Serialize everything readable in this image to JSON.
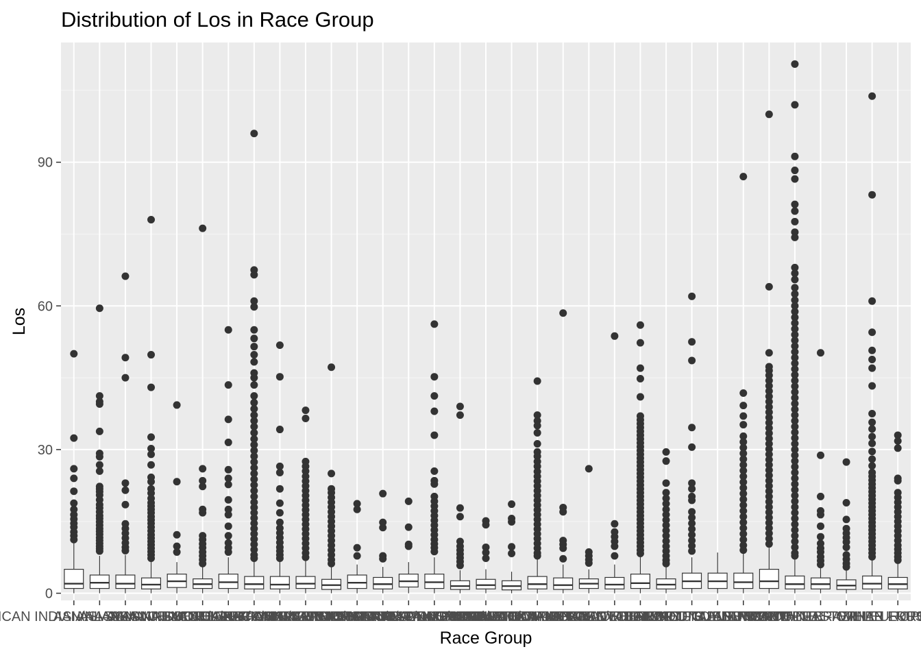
{
  "chart_data": {
    "type": "box",
    "title": "Distribution of Los in Race Group",
    "xlabel": "Race Group",
    "ylabel": "Los",
    "ylim": [
      -1.5,
      115
    ],
    "yticks": [
      0,
      30,
      60,
      90
    ],
    "grid": true,
    "legend": "none",
    "categories": [
      "AMERICAN INDIAN/ALASKA NATIVE",
      "ASIAN",
      "ASIAN - ASIAN INDIAN",
      "ASIAN - CHINESE",
      "ASIAN - KOREAN",
      "ASIAN - SOUTH EAST ASIAN",
      "BLACK/AFRICAN",
      "BLACK/AFRICAN AMERICAN",
      "BLACK/CAPE VERDEAN",
      "BLACK/CARIBBEAN ISLAND",
      "HISPANIC OR LATINO",
      "HISPANIC/LATINO - CENTRAL AMERICAN",
      "HISPANIC/LATINO - COLUMBIAN",
      "HISPANIC/LATINO - CUBAN",
      "HISPANIC/LATINO - DOMINICAN",
      "HISPANIC/LATINO - GUATEMALAN",
      "HISPANIC/LATINO - HONDURAN",
      "HISPANIC/LATINO - MEXICAN",
      "HISPANIC/LATINO - PUERTO RICAN",
      "HISPANIC/LATINO - SALVADORAN",
      "MULTIPLE RACE/ETHNICITY",
      "NATIVE HAWAIIAN OR OTHER PACIFIC ISLANDER",
      "OTHER",
      "PATIENT DECLINED TO ANSWER",
      "PORTUGUESE",
      "SOUTH AMERICAN",
      "UNABLE TO OBTAIN",
      "UNKNOWN",
      "WHITE",
      "WHITE - BRAZILIAN",
      "WHITE - EASTERN EUROPEAN",
      "WHITE - OTHER EUROPEAN",
      "WHITE - RUSSIAN"
    ],
    "boxes": [
      {
        "q1": 1.0,
        "median": 2.0,
        "q3": 5.0,
        "lower": 0.0,
        "upper": 10.5,
        "outliers": [
          50,
          32.4,
          26,
          24,
          21.3,
          18.8,
          17.5,
          16.4,
          15.5,
          14.6,
          13.8,
          12.8,
          12.0,
          11.2
        ]
      },
      {
        "q1": 1.0,
        "median": 2.2,
        "q3": 3.8,
        "lower": 0.0,
        "upper": 7.8,
        "outliers": [
          59.5,
          41.2,
          40,
          39.5,
          33.8,
          29.2,
          28.5,
          26.8,
          25.5,
          22.3,
          21.8,
          21.2,
          20.5,
          19.5,
          18.5,
          17.8,
          17.0,
          16.2,
          15.6,
          14.9,
          14.2,
          13.5,
          12.9,
          12.3,
          11.6,
          11.0,
          10.4,
          9.8,
          9.3,
          8.8
        ]
      },
      {
        "q1": 1.0,
        "median": 2.0,
        "q3": 3.8,
        "lower": 0.0,
        "upper": 8.0,
        "outliers": [
          66.2,
          49.2,
          45,
          23,
          21.5,
          18.5,
          14.5,
          13.5,
          12.5,
          11.5,
          10.5,
          9.6,
          8.9
        ]
      },
      {
        "q1": 0.9,
        "median": 1.8,
        "q3": 3.2,
        "lower": 0.0,
        "upper": 6.8,
        "outliers": [
          78,
          49.8,
          43,
          32.6,
          30.2,
          29,
          26.8,
          24.2,
          23.3,
          21.8,
          20.9,
          19.8,
          18.9,
          18.2,
          17.5,
          16.8,
          16.0,
          15.3,
          14.6,
          13.8,
          13.0,
          12.2,
          11.5,
          10.8,
          10.1,
          9.4,
          8.7,
          8.0,
          7.3
        ]
      },
      {
        "q1": 1.2,
        "median": 2.5,
        "q3": 4.0,
        "lower": 0.0,
        "upper": 6.5,
        "outliers": [
          39.3,
          23.3,
          12.2,
          9.8,
          8.6
        ]
      },
      {
        "q1": 1.0,
        "median": 1.9,
        "q3": 3.0,
        "lower": 0.0,
        "upper": 5.5,
        "outliers": [
          76.2,
          26,
          23.5,
          22.3,
          17.5,
          16.8,
          12.0,
          11.2,
          10.3,
          9.5,
          8.6,
          7.8,
          7.0,
          6.2
        ]
      },
      {
        "q1": 1.0,
        "median": 2.3,
        "q3": 4.0,
        "lower": 0.0,
        "upper": 7.5,
        "outliers": [
          55,
          43.5,
          36.3,
          31.5,
          25.8,
          24,
          22.7,
          19.5,
          17.5,
          16.4,
          14.0,
          12.0,
          10.5,
          9.5,
          8.6
        ]
      },
      {
        "q1": 0.9,
        "median": 1.9,
        "q3": 3.5,
        "lower": 0.0,
        "upper": 7.0,
        "outliers": [
          96,
          67.5,
          66.5,
          61,
          59.8,
          55,
          53.2,
          51.5,
          49.8,
          48.3,
          46,
          45,
          43.5,
          41.2,
          39.8,
          38.5,
          37.2,
          36,
          34.8,
          33.5,
          32.2,
          31.0,
          29.8,
          28.6,
          27.4,
          26.2,
          25.0,
          23.8,
          22.6,
          21.4,
          20.2,
          19.0,
          17.9,
          16.8,
          15.7,
          14.6,
          13.5,
          12.4,
          11.3,
          10.2,
          9.1,
          8.0,
          7.3
        ]
      },
      {
        "q1": 0.9,
        "median": 1.8,
        "q3": 3.5,
        "lower": 0.0,
        "upper": 7.0,
        "outliers": [
          51.8,
          45.2,
          34.2,
          26.5,
          25.2,
          21.8,
          18.8,
          16.8,
          14.8,
          13.6,
          12.6,
          11.6,
          10.6,
          9.6,
          8.8,
          8.0,
          7.3
        ]
      },
      {
        "q1": 1.0,
        "median": 2.0,
        "q3": 3.5,
        "lower": 0.0,
        "upper": 7.0,
        "outliers": [
          38.2,
          36.5,
          27.5,
          26.5,
          25.5,
          24.4,
          23.4,
          22.4,
          21.4,
          20.4,
          19.4,
          18.4,
          17.4,
          16.4,
          15.4,
          14.4,
          13.4,
          12.4,
          11.4,
          10.4,
          9.4,
          8.4,
          7.5
        ]
      },
      {
        "q1": 0.8,
        "median": 1.7,
        "q3": 2.9,
        "lower": 0.0,
        "upper": 5.5,
        "outliers": [
          47.2,
          25,
          21.8,
          21,
          20,
          19,
          18,
          17,
          16,
          15,
          14,
          13,
          12,
          11,
          10,
          9,
          8,
          7,
          6.2
        ]
      },
      {
        "q1": 1.0,
        "median": 2.2,
        "q3": 3.8,
        "lower": 0.0,
        "upper": 6.0,
        "outliers": [
          18.7,
          17.5,
          9.5,
          7.8
        ]
      },
      {
        "q1": 0.9,
        "median": 1.9,
        "q3": 3.3,
        "lower": 0.0,
        "upper": 5.5,
        "outliers": [
          20.8,
          14.8,
          13.7,
          7.8,
          7.2
        ]
      },
      {
        "q1": 1.3,
        "median": 2.5,
        "q3": 4.0,
        "lower": 0.0,
        "upper": 6.5,
        "outliers": [
          19.2,
          13.8,
          10.2,
          9.8
        ]
      },
      {
        "q1": 1.0,
        "median": 2.3,
        "q3": 4.0,
        "lower": 0.0,
        "upper": 7.5,
        "outliers": [
          56.2,
          45.2,
          41.2,
          38,
          33,
          25.5,
          23.5,
          22.8,
          20.2,
          19.2,
          18.2,
          17.2,
          16.2,
          15.2,
          14.2,
          13.2,
          12.2,
          11.2,
          10.3,
          9.5,
          8.7
        ]
      },
      {
        "q1": 0.8,
        "median": 1.5,
        "q3": 2.6,
        "lower": 0.0,
        "upper": 4.8,
        "outliers": [
          39,
          37.2,
          17.8,
          16,
          10.8,
          9.8,
          9.0,
          8.2,
          7.4,
          6.6,
          5.8
        ]
      },
      {
        "q1": 0.9,
        "median": 1.7,
        "q3": 2.9,
        "lower": 0.0,
        "upper": 5.0,
        "outliers": [
          15.1,
          14.3,
          9.6,
          8.5,
          7.3
        ]
      },
      {
        "q1": 0.7,
        "median": 1.5,
        "q3": 2.6,
        "lower": 0.0,
        "upper": 4.5,
        "outliers": [
          18.6,
          15.6,
          14.9,
          9.7,
          8.3
        ]
      },
      {
        "q1": 0.9,
        "median": 1.9,
        "q3": 3.5,
        "lower": 0.0,
        "upper": 7.5,
        "outliers": [
          44.3,
          37.2,
          36,
          35,
          33.5,
          31.2,
          29.5,
          28.6,
          27.5,
          26.5,
          25.4,
          24.4,
          23.4,
          22.4,
          21.4,
          20.4,
          19.4,
          18.4,
          17.4,
          16.4,
          15.4,
          14.4,
          13.4,
          12.4,
          11.4,
          10.4,
          9.4,
          8.4,
          7.8
        ]
      },
      {
        "q1": 0.8,
        "median": 1.7,
        "q3": 3.2,
        "lower": 0.0,
        "upper": 6.0,
        "outliers": [
          58.5,
          17.9,
          17,
          11,
          10.2,
          9.4,
          7.2
        ]
      },
      {
        "q1": 1.0,
        "median": 2.0,
        "q3": 3.0,
        "lower": 0.0,
        "upper": 5.0,
        "outliers": [
          26,
          8.6,
          7.8,
          7.0,
          6.3
        ]
      },
      {
        "q1": 0.9,
        "median": 1.8,
        "q3": 3.3,
        "lower": 0.0,
        "upper": 6.0,
        "outliers": [
          53.7,
          14.5,
          12.8,
          11.8,
          10.8,
          9.8,
          7.8
        ]
      },
      {
        "q1": 1.0,
        "median": 2.1,
        "q3": 4.0,
        "lower": 0.0,
        "upper": 8.0,
        "outliers": [
          56,
          52.3,
          47,
          44.8,
          41,
          37,
          36.2,
          35.4,
          34.6,
          33.8,
          33.0,
          32.2,
          31.4,
          30.6,
          29.8,
          29.0,
          28.2,
          27.4,
          26.6,
          25.8,
          25.0,
          24.2,
          23.4,
          22.6,
          21.8,
          21.0,
          20.2,
          19.4,
          18.6,
          17.8,
          17.0,
          16.2,
          15.4,
          14.6,
          13.8,
          13.0,
          12.2,
          11.4,
          10.6,
          9.8,
          9.0,
          8.3
        ]
      },
      {
        "q1": 0.9,
        "median": 1.8,
        "q3": 3.0,
        "lower": 0.0,
        "upper": 6.0,
        "outliers": [
          29.5,
          27.6,
          23,
          21,
          19.8,
          18.7,
          17.5,
          16.4,
          15.3,
          14.2,
          13.1,
          12.0,
          10.9,
          9.8,
          8.8,
          7.8,
          6.9,
          6.2
        ]
      },
      {
        "q1": 1.0,
        "median": 2.5,
        "q3": 4.2,
        "lower": 0.0,
        "upper": 7.5,
        "outliers": [
          62,
          52.5,
          48.6,
          34.6,
          30.5,
          23,
          21.8,
          20.2,
          19.4,
          17.0,
          15.8,
          14.6,
          13.4,
          12.2,
          11.0,
          9.9,
          8.8
        ]
      },
      {
        "q1": 1.0,
        "median": 2.5,
        "q3": 4.2,
        "lower": 0.0,
        "upper": 8.5,
        "outliers": []
      },
      {
        "q1": 1.0,
        "median": 2.3,
        "q3": 4.2,
        "lower": 0.0,
        "upper": 8.5,
        "outliers": [
          87,
          41.8,
          39.2,
          37,
          35.2,
          32.8,
          31.6,
          30.4,
          29.2,
          28.0,
          26.8,
          25.6,
          24.4,
          23.2,
          22.0,
          20.8,
          19.6,
          18.4,
          17.2,
          16.0,
          14.8,
          13.6,
          12.4,
          11.2,
          10.0,
          9.0
        ]
      },
      {
        "q1": 1.0,
        "median": 2.5,
        "q3": 5.0,
        "lower": 0.0,
        "upper": 9.5,
        "outliers": [
          100,
          64,
          50.2,
          47.3,
          46.5,
          45.5,
          44.4,
          43.3,
          42.2,
          41.1,
          40.0,
          38.9,
          37.8,
          36.7,
          35.6,
          34.5,
          33.4,
          32.3,
          31.2,
          30.1,
          29.0,
          27.9,
          26.8,
          25.7,
          24.6,
          23.5,
          22.4,
          21.3,
          20.2,
          19.1,
          18.0,
          16.9,
          15.8,
          14.7,
          13.6,
          12.5,
          11.4,
          10.3
        ]
      },
      {
        "q1": 0.9,
        "median": 1.9,
        "q3": 3.6,
        "lower": 0.0,
        "upper": 7.5,
        "outliers": [
          110.5,
          102,
          91.2,
          88.3,
          86.5,
          81.2,
          79.8,
          77.6,
          75.4,
          74.3,
          68,
          66.8,
          65.5,
          63.8,
          62.5,
          61.2,
          60.0,
          58.8,
          57.6,
          56.4,
          55.2,
          54.0,
          52.8,
          51.6,
          50.4,
          49.2,
          48.0,
          46.8,
          45.6,
          44.4,
          43.2,
          42.0,
          40.8,
          39.6,
          38.4,
          37.2,
          36.0,
          34.8,
          33.6,
          32.4,
          31.2,
          30.0,
          28.8,
          27.6,
          26.4,
          25.2,
          24.0,
          22.8,
          21.6,
          20.4,
          19.2,
          18.0,
          16.8,
          15.6,
          14.4,
          13.2,
          12.0,
          10.8,
          9.6,
          8.4,
          7.8
        ]
      },
      {
        "q1": 0.9,
        "median": 1.9,
        "q3": 3.2,
        "lower": 0.0,
        "upper": 5.8,
        "outliers": [
          50.2,
          28.8,
          20.2,
          17.2,
          16.4,
          14.0,
          11.8,
          10.4,
          9.4,
          8.6,
          7.6,
          6.8,
          6.0
        ]
      },
      {
        "q1": 0.8,
        "median": 1.6,
        "q3": 2.8,
        "lower": 0.0,
        "upper": 5.0,
        "outliers": [
          27.4,
          18.9,
          15.4,
          13.5,
          12.5,
          11.6,
          10.7,
          9.6,
          8.0,
          7.1,
          6.2,
          5.5
        ]
      },
      {
        "q1": 0.9,
        "median": 2.0,
        "q3": 3.6,
        "lower": 0.0,
        "upper": 7.0,
        "outliers": [
          103.8,
          83.2,
          61,
          54.5,
          50.7,
          48.8,
          47,
          43.3,
          37.5,
          35.7,
          34.3,
          32.7,
          31.3,
          29.6,
          28,
          26.6,
          25.2,
          24.4,
          23.6,
          22.8,
          22.0,
          21.2,
          20.4,
          19.6,
          18.8,
          18.0,
          17.2,
          16.4,
          15.6,
          14.8,
          14.0,
          13.2,
          12.4,
          11.6,
          10.8,
          10.0,
          9.2,
          8.4,
          7.6
        ]
      },
      {
        "q1": 0.9,
        "median": 1.9,
        "q3": 3.3,
        "lower": 0.0,
        "upper": 6.5,
        "outliers": [
          33,
          31.8,
          30.3,
          24,
          23.5,
          21,
          20,
          19,
          18,
          17,
          16,
          15,
          14,
          13,
          12,
          11,
          10,
          9.2,
          8.4,
          7.6,
          6.9
        ]
      }
    ]
  }
}
